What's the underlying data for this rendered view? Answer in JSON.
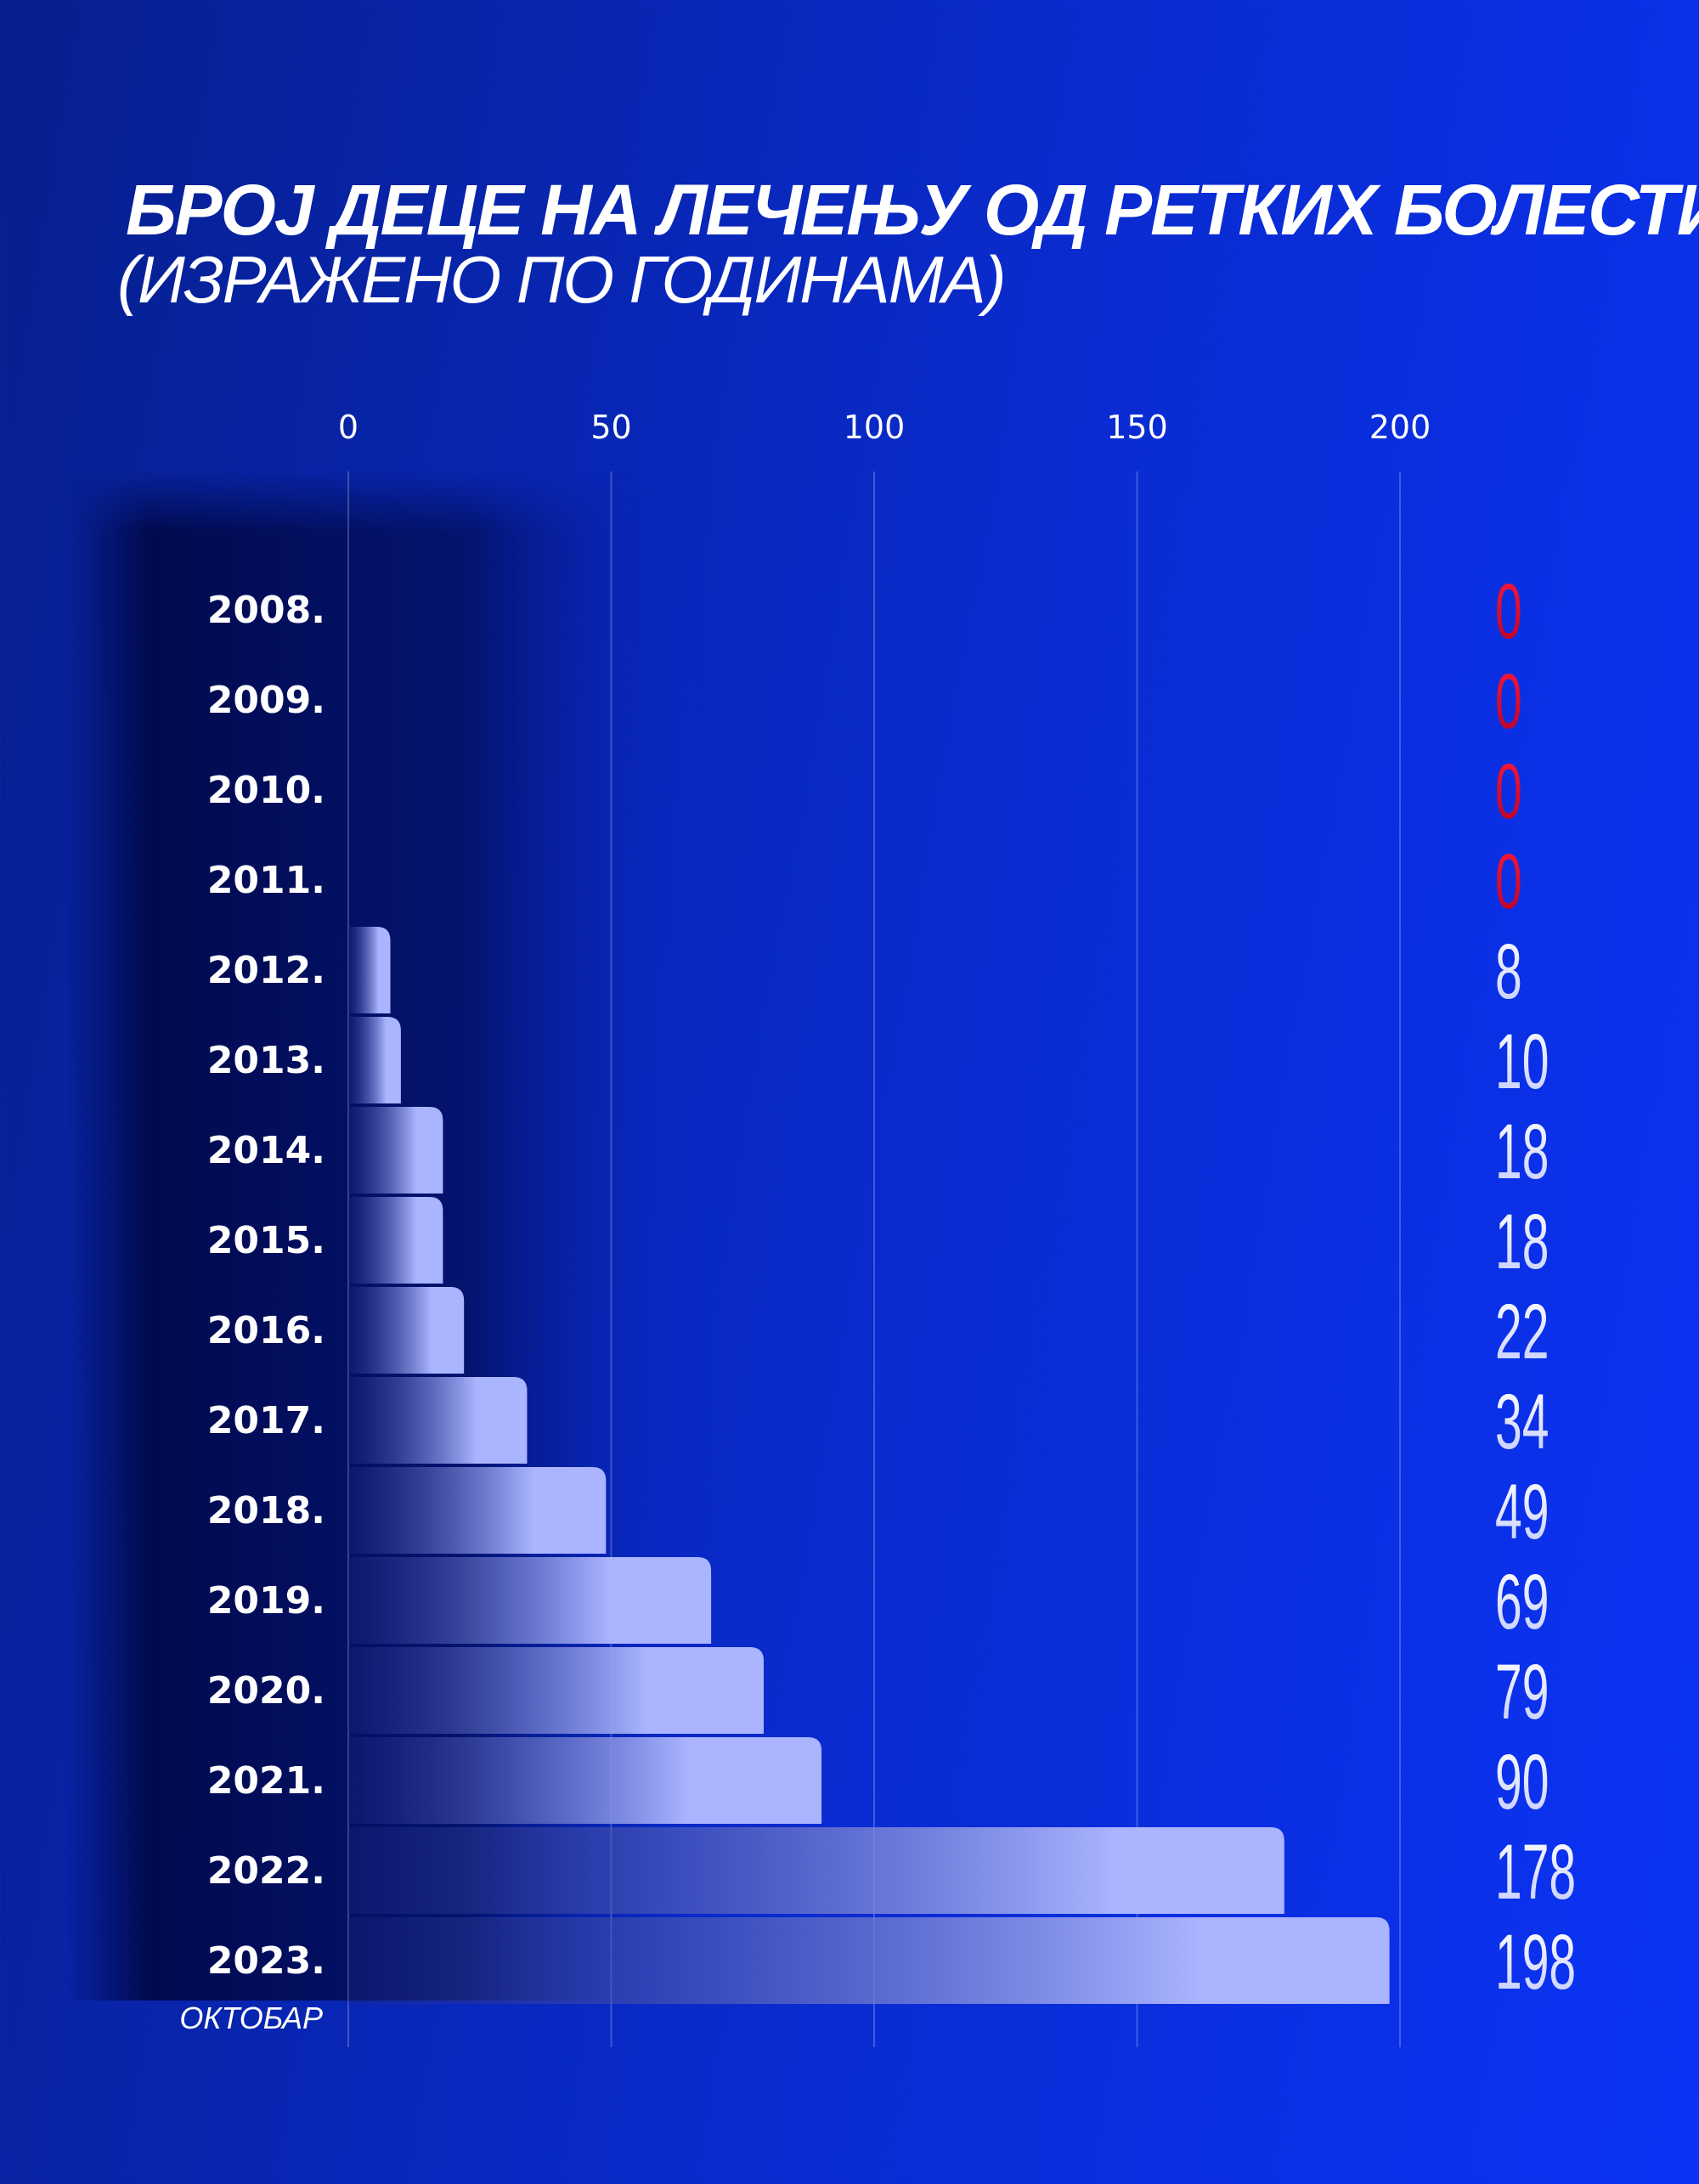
{
  "header": {
    "title": "БРОЈ ДЕЦЕ НА ЛЕЧЕЊУ ОД РЕТКИХ БОЛЕСТИ",
    "subtitle": "(ИЗРАЖЕНО ПО ГОДИНАМА)"
  },
  "chart_data": {
    "type": "bar",
    "orientation": "horizontal",
    "categories": [
      "2008.",
      "2009.",
      "2010.",
      "2011.",
      "2012.",
      "2013.",
      "2014.",
      "2015.",
      "2016.",
      "2017.",
      "2018.",
      "2019.",
      "2020.",
      "2021.",
      "2022.",
      "2023."
    ],
    "values": [
      0,
      0,
      0,
      0,
      8,
      10,
      18,
      18,
      22,
      34,
      49,
      69,
      79,
      90,
      178,
      198
    ],
    "value_labels": [
      "0",
      "0",
      "0",
      "0",
      "8",
      "10",
      "18",
      "18",
      "22",
      "34",
      "49",
      "69",
      "79",
      "90",
      "178",
      "198"
    ],
    "category_note": {
      "category": "2023.",
      "text": "ОКТОБАР"
    },
    "xticks": [
      "0",
      "50",
      "100",
      "150",
      "200"
    ],
    "xlim": [
      0,
      200
    ],
    "axis_position": "top",
    "grid": true,
    "colors": {
      "bar_end": "#aab4ff",
      "bar_start": "#1a2580",
      "zero_value": "#e60028",
      "value_text": "#ffffff",
      "background": "#0a2bd0"
    }
  }
}
